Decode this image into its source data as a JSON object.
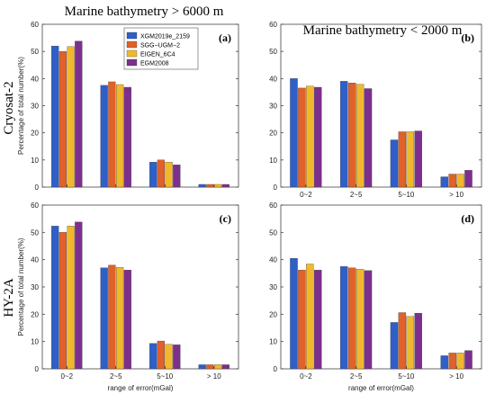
{
  "figure": {
    "col_titles": [
      "Marine bathymetry > 6000 m",
      "Marine bathymetry < 2000 m"
    ],
    "row_titles": [
      "Cryosat-2",
      "HY-2A"
    ]
  },
  "chart_data": [
    {
      "type": "bar",
      "label": "(a)",
      "categories": [
        "0~2",
        "2~5",
        "5~10",
        "> 10"
      ],
      "series": [
        {
          "name": "XGM2019e_2159",
          "values": [
            52.0,
            37.5,
            9.2,
            1.0
          ]
        },
        {
          "name": "SGG−UGM−2",
          "values": [
            50.0,
            38.8,
            10.0,
            1.0
          ]
        },
        {
          "name": "EIGEN_6C4",
          "values": [
            51.8,
            37.8,
            9.2,
            1.0
          ]
        },
        {
          "name": "EGM2008",
          "values": [
            53.8,
            36.8,
            8.2,
            1.0
          ]
        }
      ],
      "ylabel": "Percentage of total number(%)",
      "xlabel": "",
      "ylim": [
        0,
        60
      ],
      "yticks": [
        0,
        10,
        20,
        30,
        40,
        50,
        60
      ],
      "show_xticklabels": false,
      "legend": "top-right"
    },
    {
      "type": "bar",
      "label": "(b)",
      "categories": [
        "0~2",
        "2~5",
        "5~10",
        "> 10"
      ],
      "series": [
        {
          "name": "XGM2019e_2159",
          "values": [
            40.0,
            39.0,
            17.4,
            3.8
          ]
        },
        {
          "name": "SGG−UGM−2",
          "values": [
            36.5,
            38.4,
            20.4,
            4.8
          ]
        },
        {
          "name": "EIGEN_6C4",
          "values": [
            37.2,
            37.9,
            20.4,
            4.8
          ]
        },
        {
          "name": "EGM2008",
          "values": [
            36.8,
            36.3,
            20.7,
            6.2
          ]
        }
      ],
      "ylabel": "",
      "xlabel": "",
      "ylim": [
        0,
        60
      ],
      "yticks": [
        0,
        10,
        20,
        30,
        40,
        50,
        60
      ],
      "show_xticklabels": true
    },
    {
      "type": "bar",
      "label": "(c)",
      "categories": [
        "0~2",
        "2~5",
        "5~10",
        "> 10"
      ],
      "series": [
        {
          "name": "XGM2019e_2159",
          "values": [
            52.3,
            37.0,
            9.3,
            1.5
          ]
        },
        {
          "name": "SGG−UGM−2",
          "values": [
            50.0,
            38.0,
            10.2,
            1.5
          ]
        },
        {
          "name": "EIGEN_6C4",
          "values": [
            52.3,
            37.2,
            9.0,
            1.5
          ]
        },
        {
          "name": "EGM2008",
          "values": [
            53.8,
            36.2,
            8.8,
            1.5
          ]
        }
      ],
      "ylabel": "Percentage of total number(%)",
      "xlabel": "range of error(mGal)",
      "ylim": [
        0,
        60
      ],
      "yticks": [
        0,
        10,
        20,
        30,
        40,
        50,
        60
      ],
      "show_xticklabels": true
    },
    {
      "type": "bar",
      "label": "(d)",
      "categories": [
        "0~2",
        "2~5",
        "5~10",
        "> 10"
      ],
      "series": [
        {
          "name": "XGM2019e_2159",
          "values": [
            40.5,
            37.5,
            17.0,
            4.8
          ]
        },
        {
          "name": "SGG−UGM−2",
          "values": [
            36.2,
            37.0,
            20.6,
            5.8
          ]
        },
        {
          "name": "EIGEN_6C4",
          "values": [
            38.4,
            36.5,
            19.2,
            5.8
          ]
        },
        {
          "name": "EGM2008",
          "values": [
            36.2,
            36.0,
            20.4,
            6.7
          ]
        }
      ],
      "ylabel": "",
      "xlabel": "range of error(mGal)",
      "ylim": [
        0,
        60
      ],
      "yticks": [
        0,
        10,
        20,
        30,
        40,
        50,
        60
      ],
      "show_xticklabels": true
    }
  ],
  "colors": {
    "series": [
      "#2f5fc8",
      "#e0612a",
      "#f1b82e",
      "#7d2f8e"
    ],
    "axis": "#444444",
    "background": "#ffffff"
  }
}
